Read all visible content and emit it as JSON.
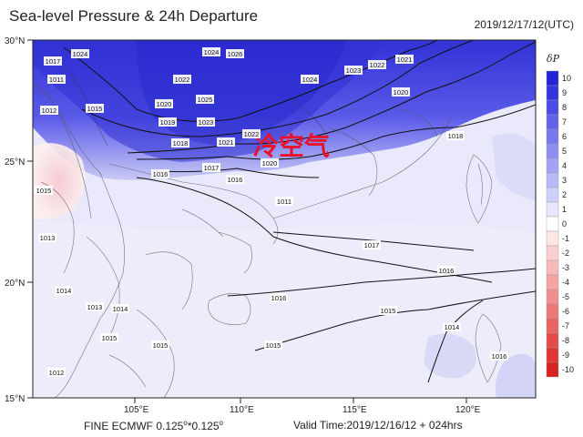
{
  "header": {
    "title": "Sea-level Pressure & 24h Departure",
    "timestamp": "2019/12/17/12(UTC)"
  },
  "footer": {
    "model": "FINE ECMWF 0.125",
    "model_x": "*0.125",
    "valid_time": "Valid Time:2019/12/16/12 + 024hrs"
  },
  "annotation": {
    "text": "冷空气",
    "color": "#e8132a"
  },
  "axes": {
    "lat_labels": [
      "30°N",
      "25°N",
      "20°N",
      "15°N"
    ],
    "lon_labels": [
      "105°E",
      "110°E",
      "115°E",
      "120°E"
    ]
  },
  "legend": {
    "title": "δP",
    "values": [
      "10",
      "9",
      "8",
      "7",
      "6",
      "5",
      "4",
      "3",
      "2",
      "1",
      "0",
      "-1",
      "-2",
      "-3",
      "-4",
      "-5",
      "-6",
      "-7",
      "-8",
      "-9",
      "-10"
    ],
    "colors": [
      "#2323d8",
      "#3535e0",
      "#4b4be6",
      "#6262ea",
      "#7878ee",
      "#8e8ef2",
      "#a3a3f5",
      "#b9b9f8",
      "#cfcffb",
      "#e6e6fd",
      "#ffffff",
      "#fde6e6",
      "#fbcfcf",
      "#f8b9b9",
      "#f5a3a3",
      "#f28e8e",
      "#ee7878",
      "#ea6262",
      "#e64b4b",
      "#e03535",
      "#d82323"
    ]
  },
  "isobar_labels": [
    "1024",
    "1026",
    "1024",
    "1023",
    "1022",
    "1021",
    "1017",
    "1011",
    "1025",
    "1022",
    "1020",
    "1012",
    "1015",
    "1020",
    "1019",
    "1023",
    "1024",
    "1018",
    "1018",
    "1021",
    "1022",
    "1020",
    "1017",
    "1016",
    "1016",
    "1014",
    "1013",
    "1015",
    "1015",
    "1014",
    "1013",
    "1011",
    "1016",
    "1015",
    "1017",
    "1016",
    "1015",
    "1015",
    "1014",
    "1016",
    "1012"
  ]
}
